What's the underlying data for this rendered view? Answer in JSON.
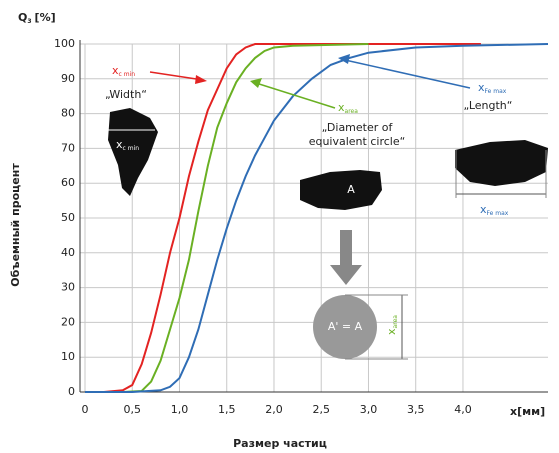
{
  "chart_data": {
    "type": "line",
    "y_title": {
      "main": "Q",
      "sub": "3",
      "unit": "[%]"
    },
    "y_axis_label": "Объемный процент",
    "x_axis_label": "Размер частиц",
    "x_unit_label": "x[мм]",
    "xlim": [
      0,
      4.9
    ],
    "ylim": [
      0,
      100
    ],
    "xticks": [
      0,
      {
        "value": 0.5,
        "label": "0,5"
      },
      {
        "value": 1,
        "label": "1,0"
      },
      {
        "value": 1.5,
        "label": "1,5"
      },
      {
        "value": 2,
        "label": "2,0"
      },
      {
        "value": 2.5,
        "label": "2,5"
      },
      {
        "value": 3,
        "label": "3,0"
      },
      {
        "value": 3.5,
        "label": "3,5"
      },
      {
        "value": 4,
        "label": "4,0"
      }
    ],
    "yticks": [
      0,
      10,
      20,
      30,
      40,
      50,
      60,
      70,
      80,
      90,
      100
    ],
    "grid": true,
    "series": [
      {
        "color": "#e32322",
        "x": [
          0,
          0.2,
          0.4,
          0.5,
          0.6,
          0.7,
          0.8,
          0.9,
          1.0,
          1.1,
          1.2,
          1.3,
          1.4,
          1.5,
          1.6,
          1.7,
          1.8,
          2.0,
          4.19
        ],
        "values": [
          0,
          0,
          0.5,
          2,
          8,
          17,
          28,
          40,
          50,
          62,
          72,
          81,
          87,
          93,
          97,
          99,
          100,
          100,
          100
        ]
      },
      {
        "color": "#6ab023",
        "x": [
          0,
          0.4,
          0.6,
          0.7,
          0.8,
          0.9,
          1.0,
          1.1,
          1.2,
          1.3,
          1.4,
          1.5,
          1.6,
          1.7,
          1.8,
          1.9,
          2.0,
          2.2,
          3.0
        ],
        "values": [
          0,
          0,
          0.3,
          3,
          9,
          18,
          27,
          38,
          52,
          65,
          76,
          83,
          89,
          93,
          96,
          98,
          99,
          99.5,
          100
        ]
      },
      {
        "color": "#2f6db5",
        "x": [
          0,
          0.5,
          0.8,
          0.9,
          1.0,
          1.1,
          1.2,
          1.3,
          1.4,
          1.5,
          1.6,
          1.7,
          1.8,
          1.9,
          2.0,
          2.2,
          2.4,
          2.6,
          2.8,
          3.0,
          3.5,
          4.0,
          4.9
        ],
        "values": [
          0,
          0,
          0.5,
          1.5,
          4,
          10,
          18,
          28,
          38,
          47,
          55,
          62,
          68,
          73,
          78,
          85,
          90,
          94,
          96,
          97.5,
          99,
          99.5,
          100
        ]
      }
    ],
    "annotations": [
      {
        "text": "x",
        "sub": "c min"
      },
      {
        "text": "„Width“"
      },
      {
        "text": "x",
        "sub": "c min"
      },
      {
        "text": "x",
        "sub": "area"
      },
      {
        "text": "„Diameter of"
      },
      {
        "text": "equivalent circle“"
      },
      {
        "text": "x",
        "sub": "Fe max"
      },
      {
        "text": "„Length“"
      },
      {
        "text": "A"
      },
      {
        "text": "A' = A"
      },
      {
        "text": "x",
        "sub": "area"
      },
      {
        "text": "x",
        "sub": "Fe max"
      }
    ]
  }
}
